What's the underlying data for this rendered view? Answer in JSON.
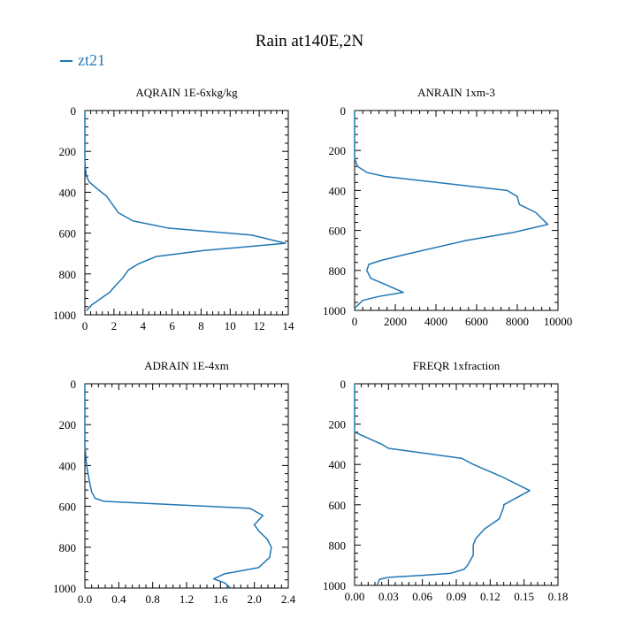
{
  "figure": {
    "title": "Rain at140E,2N",
    "legend_label": "zt21",
    "series_color": "#1f77b4"
  },
  "chart_data": [
    {
      "type": "line",
      "title": "AQRAIN  1E-6xkg/kg",
      "xlim": [
        0,
        14
      ],
      "xticks": [
        "0",
        "2",
        "4",
        "6",
        "8",
        "10",
        "12",
        "14"
      ],
      "ylim": [
        1000,
        0
      ],
      "yticks": [
        "0",
        "200",
        "400",
        "600",
        "800",
        "1000"
      ],
      "series": [
        {
          "name": "zt21",
          "x": [
            0,
            0,
            0.05,
            0.1,
            0.3,
            0.8,
            1.5,
            2.3,
            3.3,
            5.7,
            11.5,
            13.8,
            8.2,
            4.9,
            3.7,
            3.0,
            2.6,
            2.2,
            1.7,
            1.1,
            0.5,
            0.1
          ],
          "y": [
            0,
            250,
            290,
            320,
            350,
            380,
            420,
            500,
            540,
            575,
            610,
            650,
            685,
            715,
            750,
            780,
            820,
            850,
            890,
            920,
            950,
            980
          ]
        }
      ]
    },
    {
      "type": "line",
      "title": "ANRAIN  1xm-3",
      "xlim": [
        0,
        10000
      ],
      "xticks": [
        "0",
        "2000",
        "4000",
        "6000",
        "8000",
        "10000"
      ],
      "ylim": [
        1000,
        0
      ],
      "yticks": [
        "0",
        "200",
        "400",
        "600",
        "800",
        "1000"
      ],
      "series": [
        {
          "name": "zt21",
          "x": [
            0,
            0,
            150,
            600,
            1500,
            7500,
            8000,
            8100,
            8900,
            9500,
            7800,
            5500,
            2500,
            1300,
            700,
            600,
            800,
            1500,
            2400,
            1200,
            400,
            0
          ],
          "y": [
            0,
            240,
            280,
            310,
            330,
            400,
            430,
            470,
            510,
            570,
            610,
            650,
            720,
            750,
            770,
            800,
            840,
            870,
            910,
            930,
            950,
            990
          ]
        }
      ]
    },
    {
      "type": "line",
      "title": "ADRAIN  1E-4xm",
      "xlim": [
        0,
        2.4
      ],
      "xticks": [
        "0.0",
        "0.4",
        "0.8",
        "1.2",
        "1.6",
        "2.0",
        "2.4"
      ],
      "ylim": [
        1000,
        0
      ],
      "yticks": [
        "0",
        "200",
        "400",
        "600",
        "800",
        "1000"
      ],
      "series": [
        {
          "name": "zt21",
          "x": [
            0,
            0,
            0.02,
            0.05,
            0.08,
            0.12,
            0.22,
            1.95,
            2.1,
            2.0,
            2.05,
            2.15,
            2.2,
            2.18,
            2.05,
            1.65,
            1.52,
            1.65,
            1.72
          ],
          "y": [
            0,
            300,
            400,
            470,
            530,
            560,
            575,
            610,
            645,
            690,
            720,
            760,
            800,
            850,
            900,
            930,
            955,
            975,
            1000
          ]
        }
      ]
    },
    {
      "type": "line",
      "title": "FREQR  1xfraction",
      "xlim": [
        0,
        0.18
      ],
      "xticks": [
        "0.00",
        "0.03",
        "0.06",
        "0.09",
        "0.12",
        "0.15",
        "0.18"
      ],
      "ylim": [
        1000,
        0
      ],
      "yticks": [
        "0",
        "200",
        "400",
        "600",
        "800",
        "1000"
      ],
      "series": [
        {
          "name": "zt21",
          "x": [
            0,
            0,
            0.012,
            0.024,
            0.03,
            0.095,
            0.105,
            0.13,
            0.155,
            0.132,
            0.132,
            0.128,
            0.115,
            0.107,
            0.105,
            0.105,
            0.1,
            0.097,
            0.085,
            0.06,
            0.03,
            0.022,
            0.02
          ],
          "y": [
            0,
            240,
            270,
            300,
            320,
            370,
            400,
            460,
            530,
            600,
            610,
            670,
            720,
            770,
            800,
            850,
            900,
            920,
            940,
            950,
            960,
            970,
            1000
          ]
        }
      ]
    }
  ]
}
